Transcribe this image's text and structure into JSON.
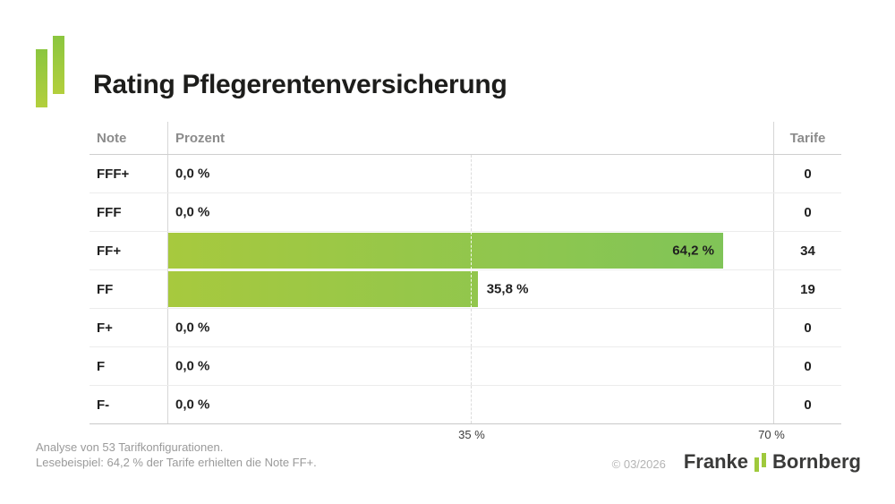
{
  "header": {
    "title": "Rating Pflegerentenversicherung"
  },
  "table": {
    "columns": {
      "note": "Note",
      "prozent": "Prozent",
      "tarife": "Tarife"
    },
    "rows": [
      {
        "note": "FFF+",
        "prozent_label": "0,0 %",
        "percent": 0.0,
        "tarife": "0"
      },
      {
        "note": "FFF",
        "prozent_label": "0,0 %",
        "percent": 0.0,
        "tarife": "0"
      },
      {
        "note": "FF+",
        "prozent_label": "64,2 %",
        "percent": 64.2,
        "tarife": "34"
      },
      {
        "note": "FF",
        "prozent_label": "35,8 %",
        "percent": 35.8,
        "tarife": "19"
      },
      {
        "note": "F+",
        "prozent_label": "0,0 %",
        "percent": 0.0,
        "tarife": "0"
      },
      {
        "note": "F",
        "prozent_label": "0,0 %",
        "percent": 0.0,
        "tarife": "0"
      },
      {
        "note": "F-",
        "prozent_label": "0,0 %",
        "percent": 0.0,
        "tarife": "0"
      }
    ],
    "axis": {
      "tick_labels": [
        "35 %",
        "70 %"
      ],
      "tick_values": [
        35,
        70
      ],
      "max": 70,
      "gridline_percent": 35
    }
  },
  "chart_data": {
    "type": "bar",
    "orientation": "horizontal",
    "title": "Rating Pflegerentenversicherung",
    "categories": [
      "FFF+",
      "FFF",
      "FF+",
      "FF",
      "F+",
      "F",
      "F-"
    ],
    "series": [
      {
        "name": "Prozent",
        "unit": "%",
        "values": [
          0.0,
          0.0,
          64.2,
          35.8,
          0.0,
          0.0,
          0.0
        ]
      },
      {
        "name": "Tarife",
        "values": [
          0,
          0,
          34,
          19,
          0,
          0,
          0
        ]
      }
    ],
    "xlabel": "Prozent",
    "ylabel": "Note",
    "xlim": [
      0,
      70
    ],
    "xticks": [
      35,
      70
    ],
    "grid": "dashed vertical line at 35 %",
    "legend": "none",
    "data_labels": "percent shown per row; values >= 45 % labeled inside bar, smaller values labeled right of bar"
  },
  "footer": {
    "line1": "Analyse von 53 Tarifkonfigurationen.",
    "line2": "Lesebeispiel: 64,2 % der Tarife erhielten die Note FF+.",
    "copyright": "© 03/2026",
    "brand_part1": "Franke",
    "brand_part2": "Bornberg"
  },
  "colors": {
    "bar_gradient_start": "#a7c93e",
    "bar_gradient_end": "#7dc45a",
    "logo_gradient_top": "#8bc63f",
    "logo_gradient_bottom": "#b3cf3d",
    "brand_green": "#9fc93c",
    "title_text": "#1d1d1b",
    "header_text": "#8b8b8b",
    "footnote_text": "#9a9a9a"
  }
}
